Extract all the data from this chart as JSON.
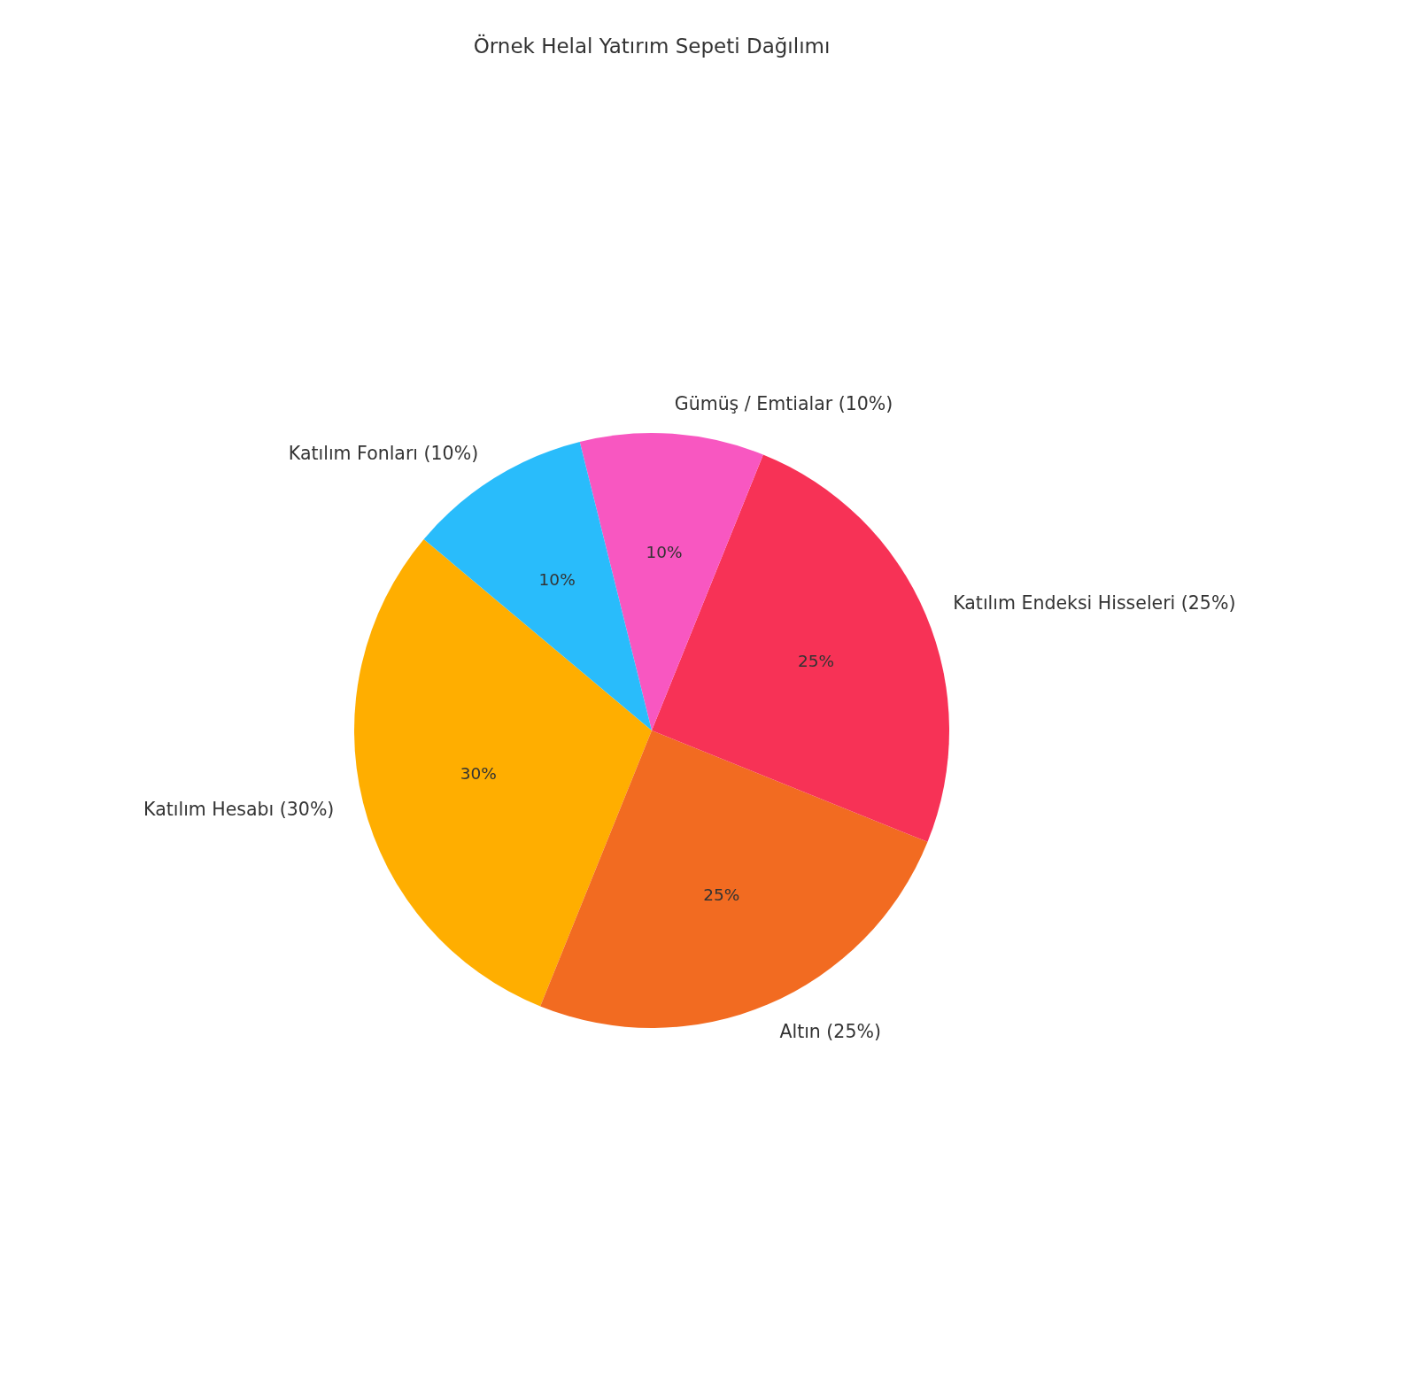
{
  "chart_data": {
    "type": "pie",
    "title": "Örnek Helal Yatırım Sepeti Dağılımı",
    "categories": [
      "Katılım Hesabı (30%)",
      "Altın (25%)",
      "Katılım Endeksi Hisseleri (25%)",
      "Gümüş / Emtialar (10%)",
      "Katılım Fonları (10%)"
    ],
    "values": [
      30,
      25,
      25,
      10,
      10
    ],
    "colors": [
      "#ffae00",
      "#f26b21",
      "#f73256",
      "#f857c1",
      "#29bcfb"
    ],
    "value_labels": [
      "30%",
      "25%",
      "25%",
      "10%",
      "10%"
    ]
  }
}
